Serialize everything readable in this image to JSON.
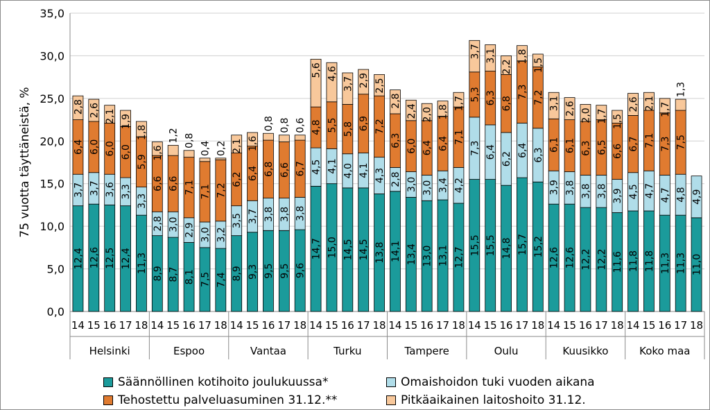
{
  "chart_data": {
    "type": "stacked-bar",
    "ylabel": "75 vuotta täyttäneistä, %",
    "ylim": [
      0,
      35
    ],
    "yticks": [
      "0,0",
      "5,0",
      "10,0",
      "15,0",
      "20,0",
      "25,0",
      "30,0",
      "35,0"
    ],
    "grid": true,
    "legend_position": "bottom",
    "years": [
      "14",
      "15",
      "16",
      "17",
      "18"
    ],
    "groups": [
      "Helsinki",
      "Espoo",
      "Vantaa",
      "Turku",
      "Tampere",
      "Oulu",
      "Kuusikko",
      "Koko maa"
    ],
    "series": [
      {
        "name": "Säännöllinen kotihoito joulukuussa*",
        "color": "#1b9b9b"
      },
      {
        "name": "Omaishoidon tuki vuoden aikana",
        "color": "#b0dde9"
      },
      {
        "name": "Tehostettu palveluasuminen 31.12.**",
        "color": "#e07b30"
      },
      {
        "name": "Pitkäaikainen laitoshoito 31.12.",
        "color": "#f8c89b"
      }
    ],
    "values": {
      "Helsinki": [
        [
          12.4,
          3.7,
          6.4,
          2.8
        ],
        [
          12.6,
          3.7,
          6.0,
          2.6
        ],
        [
          12.5,
          3.6,
          6.0,
          2.1
        ],
        [
          12.4,
          3.3,
          6.0,
          1.9
        ],
        [
          11.3,
          3.3,
          5.9,
          1.8
        ]
      ],
      "Espoo": [
        [
          8.9,
          2.8,
          6.6,
          1.6
        ],
        [
          8.7,
          3.0,
          6.6,
          1.2
        ],
        [
          8.1,
          2.9,
          7.1,
          0.8
        ],
        [
          7.5,
          3.0,
          7.1,
          0.4
        ],
        [
          7.4,
          3.2,
          7.2,
          0.2
        ]
      ],
      "Vantaa": [
        [
          8.9,
          3.5,
          6.2,
          2.1
        ],
        [
          9.3,
          3.7,
          6.4,
          1.6
        ],
        [
          9.5,
          3.8,
          6.8,
          0.8
        ],
        [
          9.5,
          3.8,
          6.6,
          0.8
        ],
        [
          9.6,
          3.8,
          6.7,
          0.6
        ]
      ],
      "Turku": [
        [
          14.7,
          4.5,
          4.8,
          5.6
        ],
        [
          15.0,
          4.1,
          5.5,
          4.6
        ],
        [
          14.5,
          4.0,
          5.8,
          3.7
        ],
        [
          14.5,
          4.1,
          6.9,
          2.9
        ],
        [
          13.8,
          4.3,
          7.2,
          2.5
        ]
      ],
      "Tampere": [
        [
          14.1,
          2.8,
          6.3,
          2.8
        ],
        [
          13.4,
          3.0,
          6.0,
          2.4
        ],
        [
          13.0,
          3.0,
          6.4,
          2.0
        ],
        [
          13.1,
          3.4,
          6.4,
          1.8
        ],
        [
          12.7,
          4.2,
          7.1,
          1.7
        ]
      ],
      "Oulu": [
        [
          15.5,
          7.3,
          5.3,
          3.7
        ],
        [
          15.5,
          6.4,
          6.3,
          3.1
        ],
        [
          14.8,
          6.2,
          6.8,
          2.2
        ],
        [
          15.7,
          6.4,
          7.3,
          1.8
        ],
        [
          15.2,
          6.3,
          7.2,
          1.5
        ]
      ],
      "Kuusikko": [
        [
          12.6,
          3.9,
          6.1,
          3.1
        ],
        [
          12.6,
          3.8,
          6.1,
          2.6
        ],
        [
          12.2,
          3.8,
          6.3,
          2.0
        ],
        [
          12.2,
          3.8,
          6.5,
          1.7
        ],
        [
          11.6,
          3.9,
          6.6,
          1.5
        ]
      ],
      "Koko maa": [
        [
          11.8,
          4.5,
          6.7,
          2.6
        ],
        [
          11.8,
          4.7,
          7.1,
          2.1
        ],
        [
          11.3,
          4.7,
          7.3,
          1.7
        ],
        [
          11.3,
          4.8,
          7.5,
          1.3
        ],
        [
          11.0,
          4.9,
          null,
          null
        ]
      ]
    },
    "value_labels": {
      "Helsinki": [
        [
          "12,4",
          "3,7",
          "6,4",
          "2,8"
        ],
        [
          "12,6",
          "3,7",
          "6,0",
          "2,6"
        ],
        [
          "12,5",
          "3,6",
          "6,0",
          "2,1"
        ],
        [
          "12,4",
          "3,3",
          "6,0",
          "1,9"
        ],
        [
          "11,3",
          "3,3",
          "5,9",
          "1,8"
        ]
      ],
      "Espoo": [
        [
          "8,9",
          "2,8",
          "6,6",
          "1,6"
        ],
        [
          "8,7",
          "3,0",
          "6,6",
          "1,2"
        ],
        [
          "8,1",
          "2,9",
          "7,1",
          "0,8"
        ],
        [
          "7,5",
          "3,0",
          "7,1",
          "0,4"
        ],
        [
          "7,4",
          "3,2",
          "7,2",
          "0,2"
        ]
      ],
      "Vantaa": [
        [
          "8,9",
          "3,5",
          "6,2",
          "2,1"
        ],
        [
          "9,3",
          "3,7",
          "6,4",
          "1,6"
        ],
        [
          "9,5",
          "3,8",
          "6,8",
          "0,8"
        ],
        [
          "9,5",
          "3,8",
          "6,6",
          "0,8"
        ],
        [
          "9,6",
          "3,8",
          "6,7",
          "0,6"
        ]
      ],
      "Turku": [
        [
          "14,7",
          "4,5",
          "4,8",
          "5,6"
        ],
        [
          "15,0",
          "4,1",
          "5,5",
          "4,6"
        ],
        [
          "14,5",
          "4,0",
          "5,8",
          "3,7"
        ],
        [
          "14,5",
          "4,1",
          "6,9",
          "2,9"
        ],
        [
          "13,8",
          "4,3",
          "7,2",
          "2,5"
        ]
      ],
      "Tampere": [
        [
          "14,1",
          "2,8",
          "6,3",
          "2,8"
        ],
        [
          "13,4",
          "3,0",
          "6,0",
          "2,4"
        ],
        [
          "13,0",
          "3,0",
          "6,4",
          "2,0"
        ],
        [
          "13,1",
          "3,4",
          "6,4",
          "1,8"
        ],
        [
          "12,7",
          "4,2",
          "7,1",
          "1,7"
        ]
      ],
      "Oulu": [
        [
          "15,5",
          "7,3",
          "5,3",
          "3,7"
        ],
        [
          "15,5",
          "6,4",
          "6,3",
          "3,1"
        ],
        [
          "14,8",
          "6,2",
          "6,8",
          "2,2"
        ],
        [
          "15,7",
          "6,4",
          "7,3",
          "1,8"
        ],
        [
          "15,2",
          "6,3",
          "7,2",
          "1,5"
        ]
      ],
      "Kuusikko": [
        [
          "12,6",
          "3,9",
          "6,1",
          "3,1"
        ],
        [
          "12,6",
          "3,8",
          "6,1",
          "2,6"
        ],
        [
          "12,2",
          "3,8",
          "6,3",
          "2,0"
        ],
        [
          "12,2",
          "3,8",
          "6,5",
          "1,7"
        ],
        [
          "11,6",
          "3,9",
          "6,6",
          "1,5"
        ]
      ],
      "Koko maa": [
        [
          "11,8",
          "4,5",
          "6,7",
          "2,6"
        ],
        [
          "11,8",
          "4,7",
          "7,1",
          "2,1"
        ],
        [
          "11,3",
          "4,7",
          "7,3",
          "1,7"
        ],
        [
          "11,3",
          "4,8",
          "7,5",
          "1,3"
        ],
        [
          "11,0",
          "4,9",
          null,
          null
        ]
      ]
    }
  }
}
